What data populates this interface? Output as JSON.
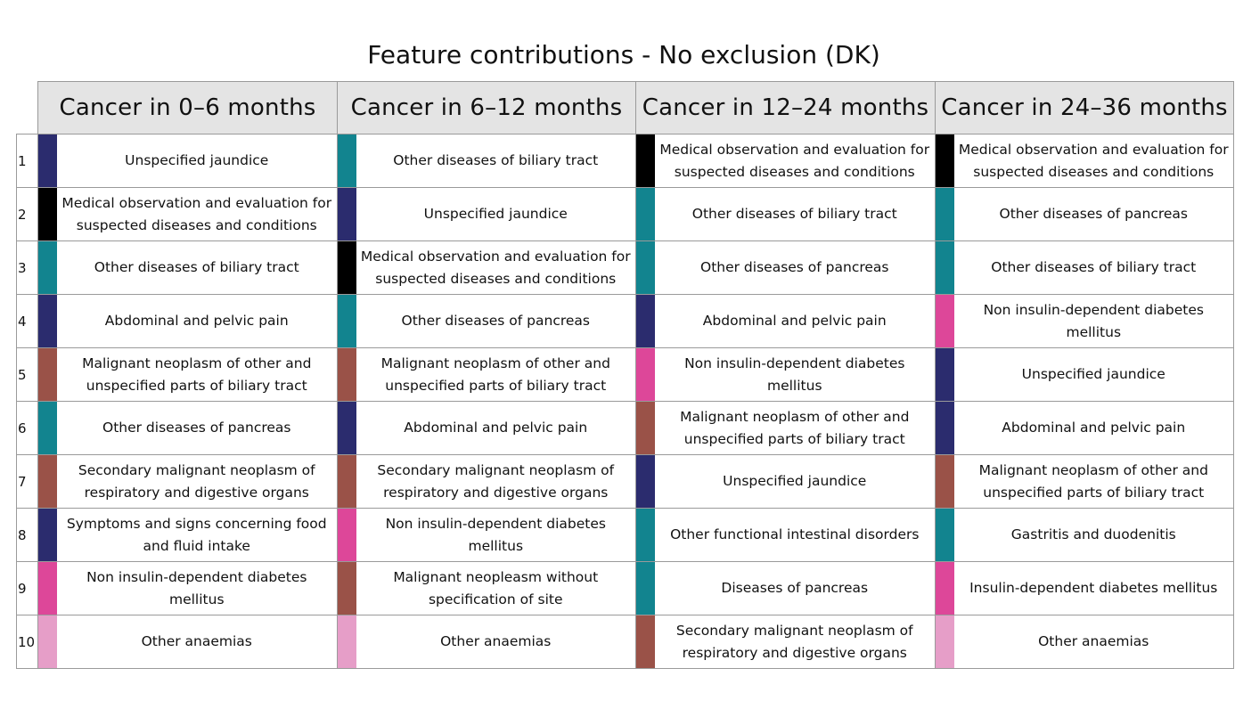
{
  "title": "Feature contributions - No exclusion (DK)",
  "colors": {
    "navy": "#2b2c6e",
    "black": "#000000",
    "teal": "#12848f",
    "brown": "#9a5248",
    "magenta": "#dd4799",
    "pink": "#e69ec8"
  },
  "columns": [
    "Cancer in 0–6 months",
    "Cancer in 6–12 months",
    "Cancer in 12–24 months",
    "Cancer in 24–36 months"
  ],
  "rows": [
    {
      "rank": "1",
      "cells": [
        {
          "label": "Unspecified jaundice",
          "color": "#2b2c6e"
        },
        {
          "label": "Other diseases of biliary tract",
          "color": "#12848f"
        },
        {
          "label": "Medical observation and evaluation for suspected diseases and conditions",
          "color": "#000000"
        },
        {
          "label": "Medical observation and evaluation for suspected diseases and conditions",
          "color": "#000000"
        }
      ]
    },
    {
      "rank": "2",
      "cells": [
        {
          "label": "Medical observation and evaluation for suspected diseases and conditions",
          "color": "#000000"
        },
        {
          "label": "Unspecified jaundice",
          "color": "#2b2c6e"
        },
        {
          "label": "Other diseases of biliary tract",
          "color": "#12848f"
        },
        {
          "label": "Other diseases of pancreas",
          "color": "#12848f"
        }
      ]
    },
    {
      "rank": "3",
      "cells": [
        {
          "label": "Other diseases of biliary tract",
          "color": "#12848f"
        },
        {
          "label": "Medical observation and evaluation for suspected diseases and conditions",
          "color": "#000000"
        },
        {
          "label": "Other diseases of pancreas",
          "color": "#12848f"
        },
        {
          "label": "Other diseases of biliary tract",
          "color": "#12848f"
        }
      ]
    },
    {
      "rank": "4",
      "cells": [
        {
          "label": "Abdominal and pelvic pain",
          "color": "#2b2c6e"
        },
        {
          "label": "Other diseases of pancreas",
          "color": "#12848f"
        },
        {
          "label": "Abdominal and pelvic pain",
          "color": "#2b2c6e"
        },
        {
          "label": "Non insulin-dependent diabetes mellitus",
          "color": "#dd4799"
        }
      ]
    },
    {
      "rank": "5",
      "cells": [
        {
          "label": "Malignant neoplasm of other and unspecified parts of biliary tract",
          "color": "#9a5248"
        },
        {
          "label": "Malignant neoplasm of other and unspecified parts of biliary tract",
          "color": "#9a5248"
        },
        {
          "label": "Non insulin-dependent diabetes mellitus",
          "color": "#dd4799"
        },
        {
          "label": "Unspecified jaundice",
          "color": "#2b2c6e"
        }
      ]
    },
    {
      "rank": "6",
      "cells": [
        {
          "label": "Other diseases of pancreas",
          "color": "#12848f"
        },
        {
          "label": "Abdominal and pelvic pain",
          "color": "#2b2c6e"
        },
        {
          "label": "Malignant neoplasm of other and unspecified parts of biliary tract",
          "color": "#9a5248"
        },
        {
          "label": "Abdominal and pelvic pain",
          "color": "#2b2c6e"
        }
      ]
    },
    {
      "rank": "7",
      "cells": [
        {
          "label": "Secondary malignant neoplasm of respiratory and digestive organs",
          "color": "#9a5248"
        },
        {
          "label": "Secondary malignant neoplasm of respiratory and digestive organs",
          "color": "#9a5248"
        },
        {
          "label": "Unspecified jaundice",
          "color": "#2b2c6e"
        },
        {
          "label": "Malignant neoplasm of other and unspecified parts of biliary tract",
          "color": "#9a5248"
        }
      ]
    },
    {
      "rank": "8",
      "cells": [
        {
          "label": "Symptoms and signs concerning food and fluid intake",
          "color": "#2b2c6e"
        },
        {
          "label": "Non insulin-dependent diabetes mellitus",
          "color": "#dd4799"
        },
        {
          "label": "Other functional intestinal disorders",
          "color": "#12848f"
        },
        {
          "label": "Gastritis and duodenitis",
          "color": "#12848f"
        }
      ]
    },
    {
      "rank": "9",
      "cells": [
        {
          "label": "Non insulin-dependent diabetes mellitus",
          "color": "#dd4799"
        },
        {
          "label": "Malignant neopleasm without specification of site",
          "color": "#9a5248"
        },
        {
          "label": "Diseases of pancreas",
          "color": "#12848f"
        },
        {
          "label": "Insulin-dependent diabetes mellitus",
          "color": "#dd4799"
        }
      ]
    },
    {
      "rank": "10",
      "cells": [
        {
          "label": "Other anaemias",
          "color": "#e69ec8"
        },
        {
          "label": "Other anaemias",
          "color": "#e69ec8"
        },
        {
          "label": "Secondary malignant neoplasm of respiratory and digestive organs",
          "color": "#9a5248"
        },
        {
          "label": "Other anaemias",
          "color": "#e69ec8"
        }
      ]
    }
  ]
}
